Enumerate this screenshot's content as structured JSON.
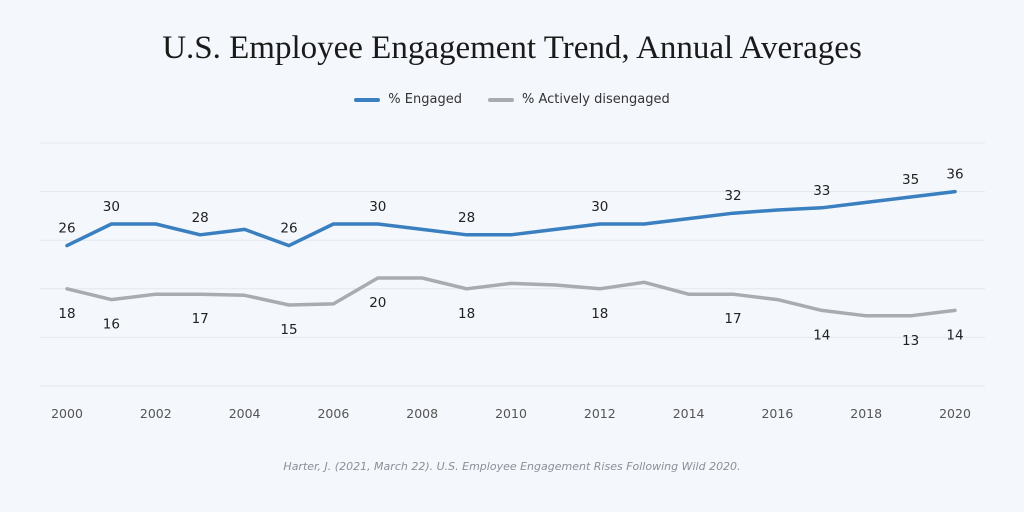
{
  "title": "U.S. Employee Engagement Trend, Annual Averages",
  "source": "Harter, J. (2021, March 22). U.S. Employee Engagement Rises Following Wild 2020.",
  "colors": {
    "engaged": "#3a7fbf",
    "disengaged": "#a9abb1",
    "grid": "#e3e7ee",
    "text": "#222222",
    "axis_text": "#555555"
  },
  "chart_data": {
    "type": "line",
    "title": "U.S. Employee Engagement Trend, Annual Averages",
    "xlabel": "",
    "ylabel": "",
    "legend_position": "top-center",
    "grid": true,
    "xlim": [
      2000,
      2020
    ],
    "ylim": [
      0,
      45
    ],
    "x": [
      2000,
      2001,
      2002,
      2003,
      2004,
      2005,
      2006,
      2007,
      2008,
      2009,
      2010,
      2011,
      2012,
      2013,
      2014,
      2015,
      2016,
      2017,
      2018,
      2019,
      2020
    ],
    "x_ticks": [
      2000,
      2002,
      2004,
      2006,
      2008,
      2010,
      2012,
      2014,
      2016,
      2018,
      2020
    ],
    "series": [
      {
        "name": "% Engaged",
        "color": "#3a7fbf",
        "values": [
          26,
          30,
          30,
          28,
          29,
          26,
          30,
          30,
          29,
          28,
          28,
          29,
          30,
          30,
          31,
          32,
          32.6,
          33,
          34,
          35,
          36
        ],
        "labels": {
          "2000": "26",
          "2001": "30",
          "2003": "28",
          "2005": "26",
          "2007": "30",
          "2009": "28",
          "2012": "30",
          "2015": "32",
          "2017": "33",
          "2019": "35",
          "2020": "36"
        }
      },
      {
        "name": "% Actively disengaged",
        "color": "#a9abb1",
        "values": [
          18,
          16,
          17,
          17,
          16.8,
          15,
          15.2,
          20,
          20,
          18,
          19,
          18.7,
          18,
          19.2,
          17,
          17,
          16,
          14,
          13,
          13,
          14
        ],
        "labels": {
          "2000": "18",
          "2001": "16",
          "2003": "17",
          "2005": "15",
          "2007": "20",
          "2009": "18",
          "2012": "18",
          "2015": "17",
          "2017": "14",
          "2019": "13",
          "2020": "14"
        }
      }
    ]
  }
}
